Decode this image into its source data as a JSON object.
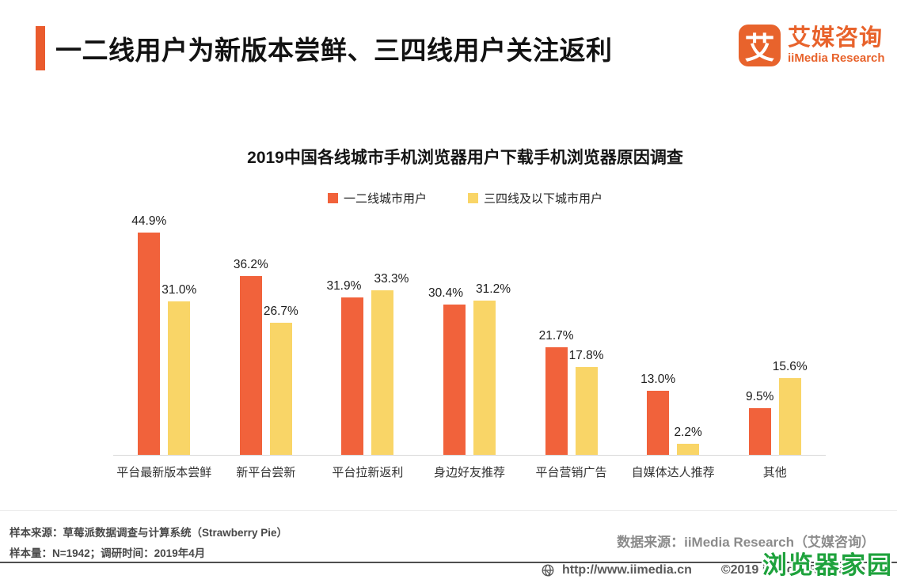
{
  "header": {
    "title": "一二线用户为新版本尝鲜、三四线用户关注返利",
    "logo": {
      "glyph": "艾",
      "name_cn": "艾媒咨询",
      "name_en": "iiMedia Research"
    }
  },
  "chart_data": {
    "type": "bar",
    "title": "2019中国各线城市手机浏览器用户下载手机浏览器原因调查",
    "categories": [
      "平台最新版本尝鲜",
      "新平台尝新",
      "平台拉新返利",
      "身边好友推荐",
      "平台营销广告",
      "自媒体达人推荐",
      "其他"
    ],
    "series": [
      {
        "name": "一二线城市用户",
        "color": "#F1623B",
        "values": [
          44.9,
          36.2,
          31.9,
          30.4,
          21.7,
          13.0,
          9.5
        ]
      },
      {
        "name": "三四线及以下城市用户",
        "color": "#F9D567",
        "values": [
          31.0,
          26.7,
          33.3,
          31.2,
          17.8,
          2.2,
          15.6
        ]
      }
    ],
    "value_suffix": "%",
    "ylim": [
      0,
      48
    ],
    "grid": false,
    "legend_position": "top",
    "data_labels": true
  },
  "footer": {
    "sample_source": "样本来源：草莓派数据调查与计算系统（Strawberry Pie）",
    "sample_size": "样本量：N=1942；调研时间：2019年4月",
    "data_source": "数据来源：iiMedia Research（艾媒咨询）"
  },
  "bottom_bar": {
    "url": "http://www.iimedia.cn",
    "copyright": "©2019 iiMedia Research Inc.",
    "watermark": "浏览器家园"
  },
  "colors": {
    "accent": "#EA5B2D",
    "brand": "#E8632C",
    "bar1": "#F1623B",
    "bar2": "#F9D567",
    "wm": "#1EA23C"
  }
}
